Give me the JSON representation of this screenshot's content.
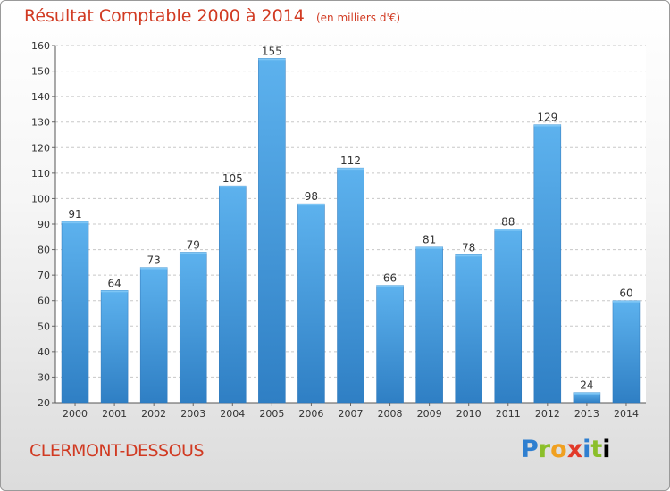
{
  "chart_data": {
    "type": "bar",
    "title": "Résultat Comptable 2000 à 2014",
    "unit": "(en milliers d'€)",
    "categories": [
      "2000",
      "2001",
      "2002",
      "2003",
      "2004",
      "2005",
      "2006",
      "2007",
      "2008",
      "2009",
      "2010",
      "2011",
      "2012",
      "2013",
      "2014"
    ],
    "values": [
      91,
      64,
      73,
      79,
      105,
      155,
      98,
      112,
      66,
      81,
      78,
      88,
      129,
      24,
      60
    ],
    "ylim": [
      20,
      160
    ],
    "yticks": [
      20,
      30,
      40,
      50,
      60,
      70,
      80,
      90,
      100,
      110,
      120,
      130,
      140,
      150,
      160
    ],
    "grid": true,
    "bar_color": "#4a9fe0",
    "title_color": "#d13a22"
  },
  "commune": "CLERMONT-DESSOUS",
  "logo": {
    "letters": [
      "P",
      "r",
      "o",
      "x",
      "i",
      "t",
      "i"
    ]
  }
}
